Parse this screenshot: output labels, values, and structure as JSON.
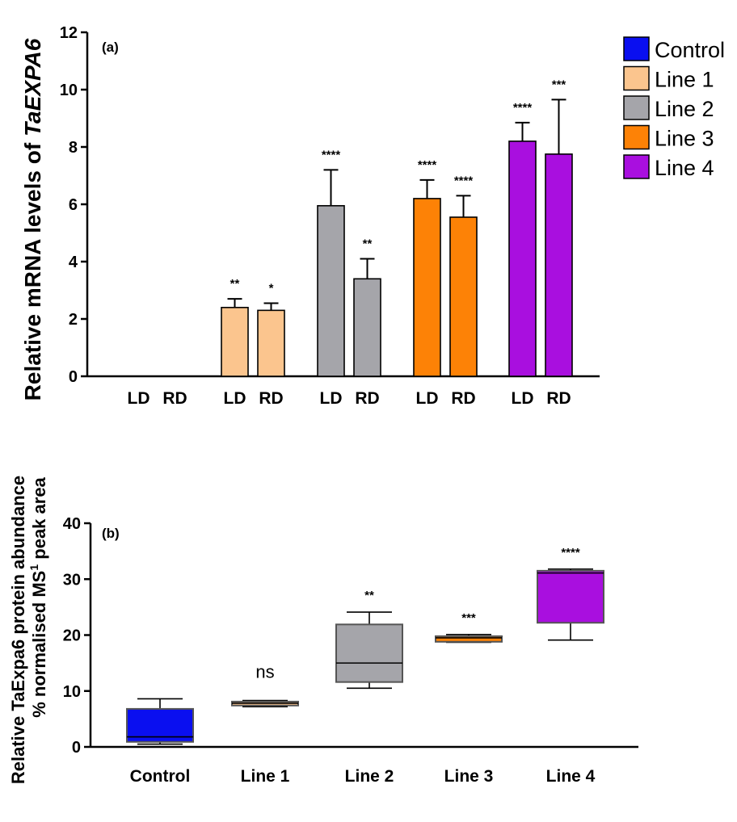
{
  "chart_data": [
    {
      "type": "bar",
      "panel_label": "(a)",
      "ylabel_prefix": "Relative mRNA levels of ",
      "ylabel_gene": "TaEXPA6",
      "ylim": [
        0,
        12
      ],
      "yticks": [
        0,
        2,
        4,
        6,
        8,
        10,
        12
      ],
      "grid": false,
      "legend_position": "top-right",
      "legend": [
        {
          "name": "Control",
          "color": "#0a0ff0"
        },
        {
          "name": "Line 1",
          "color": "#fbc58e"
        },
        {
          "name": "Line 2",
          "color": "#a5a5aa"
        },
        {
          "name": "Line 3",
          "color": "#fd8206"
        },
        {
          "name": "Line 4",
          "color": "#a90fdf"
        }
      ],
      "groups": [
        "Control",
        "Line 1",
        "Line 2",
        "Line 3",
        "Line 4"
      ],
      "categories": [
        "LD",
        "RD"
      ],
      "series": [
        {
          "group": "Control",
          "color": "#0a0ff0",
          "values": [
            0,
            0
          ],
          "errors": [
            0,
            0
          ],
          "significance": [
            "",
            ""
          ]
        },
        {
          "group": "Line 1",
          "color": "#fbc58e",
          "values": [
            2.4,
            2.3
          ],
          "errors": [
            0.3,
            0.25
          ],
          "significance": [
            "**",
            "*"
          ]
        },
        {
          "group": "Line 2",
          "color": "#a5a5aa",
          "values": [
            5.95,
            3.4
          ],
          "errors": [
            1.25,
            0.7
          ],
          "significance": [
            "****",
            "**"
          ]
        },
        {
          "group": "Line 3",
          "color": "#fd8206",
          "values": [
            6.2,
            5.55
          ],
          "errors": [
            0.65,
            0.75
          ],
          "significance": [
            "****",
            "****"
          ]
        },
        {
          "group": "Line 4",
          "color": "#a90fdf",
          "values": [
            8.2,
            7.75
          ],
          "errors": [
            0.65,
            1.9
          ],
          "significance": [
            "****",
            "***"
          ]
        }
      ]
    },
    {
      "type": "box",
      "panel_label": "(b)",
      "ylabel_line1": "Relative TaExpa6 protein abundance",
      "ylabel_line2_prefix": "% normalised MS",
      "ylabel_line2_sup": "1",
      "ylabel_line2_suffix": " peak area",
      "ylim": [
        0,
        40
      ],
      "yticks": [
        0,
        10,
        20,
        30,
        40
      ],
      "grid": false,
      "categories": [
        "Control",
        "Line 1",
        "Line 2",
        "Line 3",
        "Line 4"
      ],
      "boxes": [
        {
          "name": "Control",
          "color": "#0a0ff0",
          "min": 0.5,
          "q1": 0.9,
          "median": 1.8,
          "q3": 6.8,
          "max": 8.6,
          "significance": ""
        },
        {
          "name": "Line 1",
          "color": "#fbc58e",
          "min": 7.2,
          "q1": 7.4,
          "median": 7.8,
          "q3": 8.1,
          "max": 8.3,
          "significance": "ns"
        },
        {
          "name": "Line 2",
          "color": "#a5a5aa",
          "min": 10.5,
          "q1": 11.6,
          "median": 15.0,
          "q3": 21.9,
          "max": 24.1,
          "significance": "**"
        },
        {
          "name": "Line 3",
          "color": "#fd8206",
          "min": 18.7,
          "q1": 18.8,
          "median": 19.5,
          "q3": 19.8,
          "max": 20.1,
          "significance": "***"
        },
        {
          "name": "Line 4",
          "color": "#a90fdf",
          "min": 19.1,
          "q1": 22.2,
          "median": 31.1,
          "q3": 31.5,
          "max": 31.8,
          "significance": "****"
        }
      ]
    }
  ]
}
